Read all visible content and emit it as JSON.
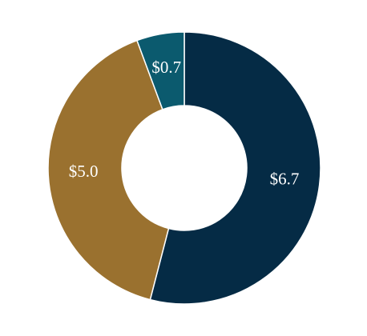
{
  "chart_data": {
    "type": "donut",
    "values": [
      6.7,
      5.0,
      0.7
    ],
    "value_labels": [
      "$6.7",
      "$5.0",
      "$0.7"
    ],
    "colors": [
      "#052b45",
      "#9a712f",
      "#0b5a6e"
    ]
  }
}
